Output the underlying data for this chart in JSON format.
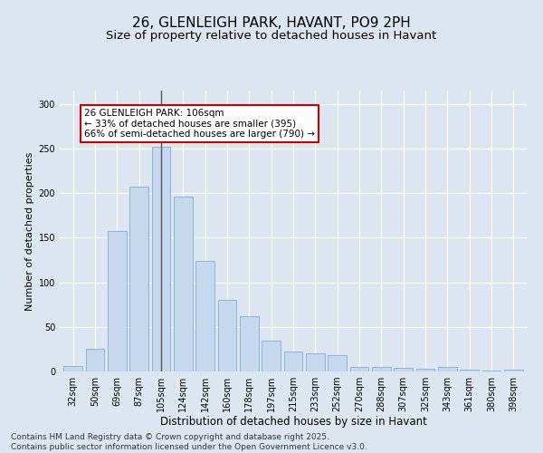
{
  "title1": "26, GLENLEIGH PARK, HAVANT, PO9 2PH",
  "title2": "Size of property relative to detached houses in Havant",
  "xlabel": "Distribution of detached houses by size in Havant",
  "ylabel": "Number of detached properties",
  "categories": [
    "32sqm",
    "50sqm",
    "69sqm",
    "87sqm",
    "105sqm",
    "124sqm",
    "142sqm",
    "160sqm",
    "178sqm",
    "197sqm",
    "215sqm",
    "233sqm",
    "252sqm",
    "270sqm",
    "288sqm",
    "307sqm",
    "325sqm",
    "343sqm",
    "361sqm",
    "380sqm",
    "398sqm"
  ],
  "values": [
    6,
    25,
    157,
    207,
    252,
    196,
    124,
    80,
    62,
    35,
    22,
    20,
    18,
    5,
    5,
    4,
    3,
    5,
    2,
    1,
    2
  ],
  "bar_color": "#c5d8ee",
  "bar_edge_color": "#7aaed4",
  "highlight_index": 4,
  "vline_color": "#555555",
  "annotation_text": "26 GLENLEIGH PARK: 106sqm\n← 33% of detached houses are smaller (395)\n66% of semi-detached houses are larger (790) →",
  "annotation_box_color": "#ffffff",
  "annotation_box_edge": "#cc0000",
  "ylim": [
    0,
    315
  ],
  "yticks": [
    0,
    50,
    100,
    150,
    200,
    250,
    300
  ],
  "bg_color": "#dde6f0",
  "plot_bg_color": "#dde6f0",
  "footer": "Contains HM Land Registry data © Crown copyright and database right 2025.\nContains public sector information licensed under the Open Government Licence v3.0.",
  "title1_fontsize": 11,
  "title2_fontsize": 9.5,
  "xlabel_fontsize": 8.5,
  "ylabel_fontsize": 8,
  "tick_fontsize": 7,
  "annotation_fontsize": 7.5,
  "footer_fontsize": 6.5
}
